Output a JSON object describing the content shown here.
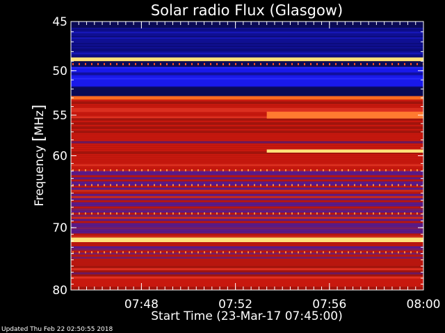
{
  "chart_data": {
    "type": "heatmap",
    "title": "Solar radio Flux (Glasgow)",
    "xlabel": "Start Time (23-Mar-17 07:45:00)",
    "ylabel": "Frequency [MHz]",
    "y_unit_prefix": "Frequency ",
    "y_unit": "MHz",
    "xlim": [
      "07:45",
      "08:00"
    ],
    "ylim": [
      45,
      80
    ],
    "y_reversed": true,
    "y_scale": "log",
    "x_ticks": [
      "07:48",
      "07:52",
      "07:56",
      "08:00"
    ],
    "y_ticks": [
      "45",
      "50",
      "55",
      "60",
      "70",
      "80"
    ],
    "bands": [
      {
        "from": 45.0,
        "to": 45.6,
        "level": "dark-navy"
      },
      {
        "from": 45.6,
        "to": 48.6,
        "level": "deep-blue"
      },
      {
        "from": 48.6,
        "to": 49.0,
        "level": "bright-yellow-line"
      },
      {
        "from": 49.0,
        "to": 49.6,
        "level": "dark-navy"
      },
      {
        "from": 49.6,
        "to": 51.8,
        "level": "blue"
      },
      {
        "from": 51.8,
        "to": 52.8,
        "level": "dark-navy"
      },
      {
        "from": 52.8,
        "to": 53.2,
        "level": "orange-line"
      },
      {
        "from": 53.2,
        "to": 62.0,
        "level": "red"
      },
      {
        "from": 62.0,
        "to": 71.5,
        "level": "red-purple-mixed"
      },
      {
        "from": 71.5,
        "to": 72.2,
        "level": "bright-yellow-line"
      },
      {
        "from": 72.2,
        "to": 76.0,
        "level": "red-purple-mixed"
      },
      {
        "from": 76.0,
        "to": 80.0,
        "level": "red"
      }
    ],
    "events": [
      {
        "start": "07:53:20",
        "freq": [
          54.6,
          55.4
        ],
        "level": "bright-orange"
      },
      {
        "start": "07:53:20",
        "freq": [
          59.2,
          59.6
        ],
        "level": "bright-yellow-line"
      }
    ]
  },
  "footer": {
    "updated": "Updated Thu Feb 22 02:50:55 2018"
  },
  "colors": {
    "background": "#000000",
    "text": "#ffffff",
    "navy": "#0a0a55",
    "blue": "#1a1aee",
    "red": "#cc1a10",
    "purple": "#5a1a88",
    "yellow": "#ffe060"
  }
}
